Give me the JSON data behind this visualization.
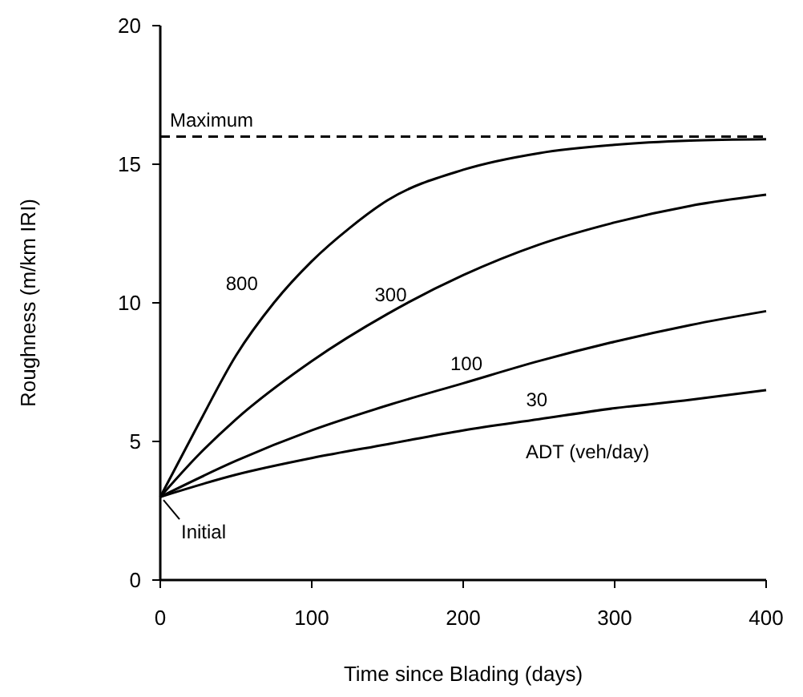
{
  "chart_data": {
    "type": "line",
    "xlabel": "Time since Blading (days)",
    "ylabel": "Roughness (m/km IRI)",
    "xlim": [
      0,
      400
    ],
    "xticks": [
      0,
      100,
      200,
      300,
      400
    ],
    "ylim": [
      0,
      20
    ],
    "yticks": [
      0,
      5,
      10,
      15,
      20
    ],
    "grid": false,
    "line_style": "solid",
    "marker": "none",
    "ref_lines": [
      {
        "axis": "y",
        "value": 16,
        "label": "Maximum",
        "line_style": "dashed",
        "color": "#000000"
      }
    ],
    "annotations": [
      {
        "text": "Initial",
        "x": 0,
        "y": 3
      },
      "ADT (veh/day)"
    ],
    "series": [
      {
        "name": "800",
        "color": "#000000",
        "x": [
          0,
          25,
          50,
          75,
          100,
          125,
          150,
          200,
          250,
          300,
          350,
          400
        ],
        "values": [
          3,
          5.6,
          8.1,
          10,
          11.5,
          12.7,
          13.7,
          14.8,
          15.4,
          15.7,
          15.85,
          15.9
        ]
      },
      {
        "name": "300",
        "color": "#000000",
        "x": [
          0,
          25,
          50,
          100,
          150,
          200,
          250,
          300,
          350,
          400
        ],
        "values": [
          3,
          4.5,
          5.8,
          7.9,
          9.6,
          11,
          12.1,
          12.9,
          13.5,
          13.9
        ]
      },
      {
        "name": "100",
        "color": "#000000",
        "x": [
          0,
          50,
          100,
          150,
          200,
          250,
          300,
          350,
          400
        ],
        "values": [
          3,
          4.3,
          5.4,
          6.3,
          7.1,
          7.9,
          8.6,
          9.2,
          9.7
        ]
      },
      {
        "name": "30",
        "color": "#000000",
        "x": [
          0,
          50,
          100,
          150,
          200,
          250,
          300,
          350,
          400
        ],
        "values": [
          3,
          3.8,
          4.4,
          4.9,
          5.4,
          5.8,
          6.2,
          6.5,
          6.85
        ]
      }
    ]
  }
}
